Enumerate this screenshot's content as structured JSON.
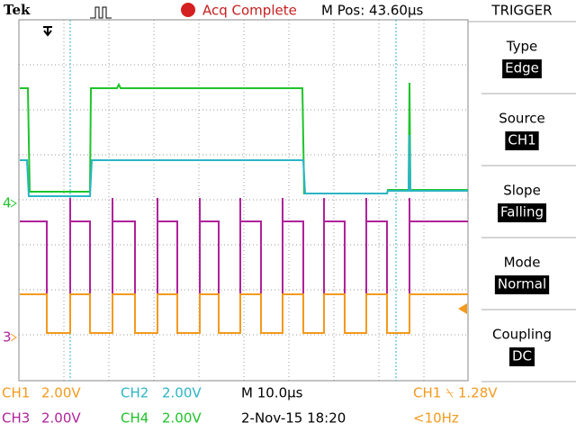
{
  "header": {
    "brand": "Tek",
    "status": "Acq Complete",
    "position": "M Pos: 43.60µs"
  },
  "menu": {
    "title": "TRIGGER",
    "items": [
      {
        "label": "Type",
        "value": "Edge"
      },
      {
        "label": "Source",
        "value": "CH1"
      },
      {
        "label": "Slope",
        "value": "Falling"
      },
      {
        "label": "Mode",
        "value": "Normal"
      },
      {
        "label": "Coupling",
        "value": "DC"
      }
    ]
  },
  "markers": {
    "ch4": "4",
    "ch3": "3"
  },
  "footer": {
    "ch1": "CH1",
    "ch1_scale": "2.00V",
    "ch2": "CH2",
    "ch2_scale": "2.00V",
    "timebase": "M 10.0µs",
    "trigger": "CH1 ⍀ 1.28V",
    "ch3": "CH3",
    "ch3_scale": "2.00V",
    "ch4": "CH4",
    "ch4_scale": "2.00V",
    "datetime": "2-Nov-15 18:20",
    "frequency": "<10Hz"
  }
}
